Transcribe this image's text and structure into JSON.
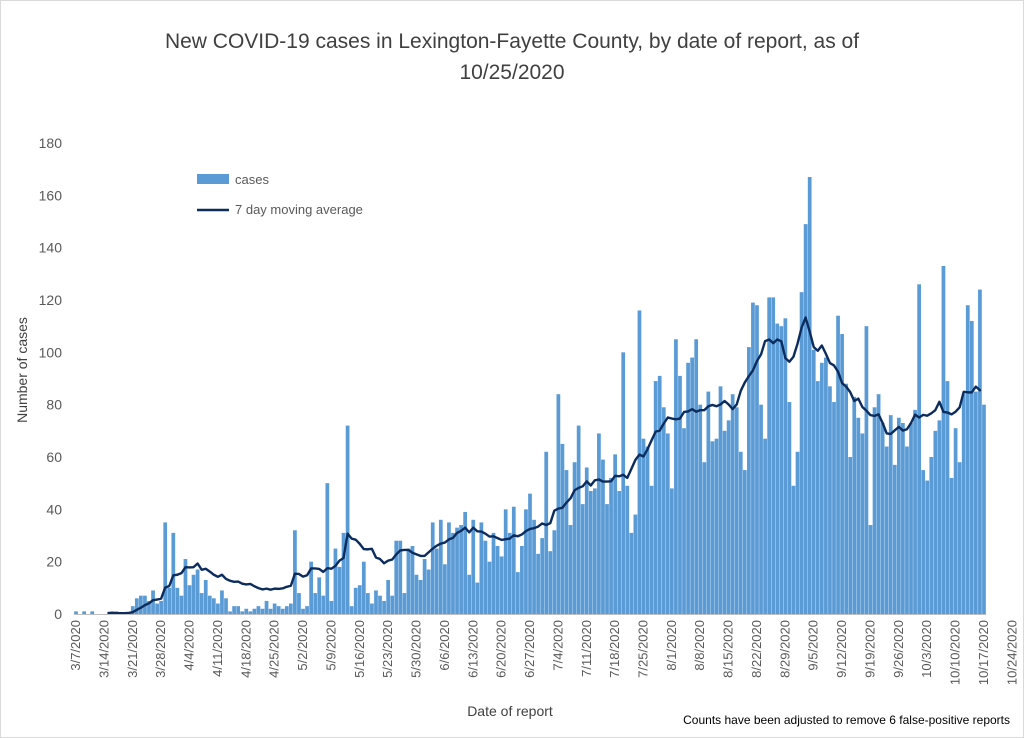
{
  "chart_data": {
    "type": "bar",
    "title": "New COVID-19 cases in Lexington-Fayette County, by date of report, as of 10/25/2020",
    "title_lines": [
      "New COVID-19 cases in Lexington-Fayette County, by date of report, as of",
      "10/25/2020"
    ],
    "xlabel": "Date of report",
    "ylabel": "Number of cases",
    "ylim": [
      0,
      180
    ],
    "yticks": [
      0,
      20,
      40,
      60,
      80,
      100,
      120,
      140,
      160,
      180
    ],
    "x_tick_labels": [
      "3/7/2020",
      "3/14/2020",
      "3/21/2020",
      "3/28/2020",
      "4/4/2020",
      "4/11/2020",
      "4/18/2020",
      "4/25/2020",
      "5/2/2020",
      "5/9/2020",
      "5/16/2020",
      "5/23/2020",
      "5/30/2020",
      "6/6/2020",
      "6/13/2020",
      "6/20/2020",
      "6/27/2020",
      "7/4/2020",
      "7/11/2020",
      "7/18/2020",
      "7/25/2020",
      "8/1/2020",
      "8/8/2020",
      "8/15/2020",
      "8/22/2020",
      "8/29/2020",
      "9/5/2020",
      "9/12/2020",
      "9/19/2020",
      "9/26/2020",
      "10/3/2020",
      "10/10/2020",
      "10/17/2020",
      "10/24/2020"
    ],
    "start_date": "3/7/2020",
    "legend_position": "top-left",
    "grid": false,
    "note": "Counts have been adjusted to remove 6 false-positive reports",
    "colors": {
      "bars": "#5b9bd5",
      "line": "#0d2c5e",
      "axis": "#bfbfbf"
    },
    "series": [
      {
        "name": "cases",
        "type": "bar",
        "values": [
          1,
          0,
          1,
          0,
          1,
          0,
          0,
          0,
          0,
          1,
          1,
          0,
          0,
          0,
          3,
          6,
          7,
          7,
          5,
          9,
          4,
          5,
          35,
          10,
          31,
          10,
          7,
          21,
          11,
          15,
          17,
          8,
          13,
          7,
          6,
          4,
          9,
          6,
          1,
          3,
          3,
          1,
          2,
          1,
          2,
          3,
          2,
          5,
          2,
          4,
          3,
          2,
          3,
          4,
          32,
          8,
          2,
          3,
          20,
          8,
          14,
          7,
          50,
          5,
          25,
          18,
          31,
          72,
          3,
          10,
          11,
          20,
          8,
          4,
          9,
          7,
          5,
          13,
          7,
          28,
          28,
          8,
          25,
          26,
          15,
          13,
          21,
          17,
          35,
          25,
          36,
          19,
          35,
          31,
          33,
          34,
          39,
          15,
          36,
          12,
          35,
          28,
          20,
          31,
          26,
          22,
          40,
          31,
          41,
          16,
          26,
          40,
          46,
          36,
          23,
          29,
          62,
          24,
          32,
          84,
          65,
          55,
          34,
          58,
          72,
          42,
          56,
          47,
          48,
          69,
          59,
          42,
          52,
          61,
          47,
          100,
          49,
          31,
          38,
          116,
          67,
          64,
          49,
          89,
          91,
          79,
          69,
          48,
          105,
          91,
          71,
          96,
          98,
          105,
          80,
          58,
          85,
          66,
          67,
          87,
          70,
          74,
          84,
          79,
          62,
          55,
          102,
          119,
          118,
          80,
          67,
          121,
          121,
          111,
          110,
          113,
          81,
          49,
          62,
          123,
          149,
          167,
          101,
          89,
          96,
          98,
          87,
          81,
          114,
          107,
          88,
          60,
          83,
          75,
          69,
          110,
          34,
          79,
          84,
          73,
          64,
          76,
          57,
          75,
          73,
          64,
          73,
          78,
          126,
          55,
          51,
          60,
          70,
          74,
          133,
          89,
          52,
          71,
          58,
          84,
          118,
          112,
          85,
          124,
          80
        ]
      },
      {
        "name": "7 day moving average",
        "type": "line",
        "values": [
          null,
          null,
          null,
          null,
          null,
          null,
          null,
          null,
          0.4,
          0.4,
          0.3,
          0.3,
          0.3,
          0.4,
          0.7,
          1.6,
          2.4,
          3.4,
          4.1,
          5.3,
          5.5,
          5.9,
          10.1,
          10.7,
          14.8,
          15.0,
          15.6,
          17.9,
          17.8,
          17.9,
          19.3,
          16.9,
          17.3,
          16.2,
          15.0,
          14.2,
          15.0,
          13.4,
          12.7,
          12.3,
          12.4,
          11.6,
          11.3,
          11.5,
          10.6,
          9.9,
          9.4,
          9.7,
          9.3,
          9.7,
          9.6,
          9.8,
          10.4,
          10.8,
          15.4,
          15.3,
          14.3,
          14.8,
          17.4,
          17.4,
          17.2,
          16.1,
          17.5,
          17.3,
          18.4,
          20.4,
          21.4,
          30.7,
          28.8,
          28.4,
          26.8,
          24.8,
          24.7,
          24.9,
          21.6,
          21.0,
          19.4,
          20.4,
          20.8,
          22.8,
          24.3,
          24.5,
          24.5,
          23.4,
          22.8,
          22.2,
          22.2,
          23.6,
          25.0,
          26.1,
          26.9,
          27.3,
          28.5,
          29.1,
          31.0,
          31.8,
          33.0,
          31.2,
          33.0,
          31.6,
          31.5,
          30.7,
          29.6,
          29.7,
          29.0,
          28.3,
          28.6,
          28.8,
          30.1,
          29.7,
          30.4,
          31.7,
          32.5,
          32.8,
          33.4,
          34.6,
          34.0,
          34.7,
          39.5,
          40.3,
          40.6,
          42.6,
          44.2,
          47.3,
          48.2,
          48.8,
          50.7,
          49.1,
          51.1,
          51.4,
          50.6,
          50.6,
          50.7,
          52.8,
          52.6,
          53.2,
          52.0,
          55.4,
          58.9,
          60.9,
          60.2,
          63.0,
          66.4,
          69.7,
          70.1,
          72.8,
          75.1,
          74.7,
          74.4,
          74.7,
          77.2,
          77.4,
          78.3,
          77.3,
          77.9,
          77.9,
          79.4,
          79.9,
          79.4,
          80.1,
          81.4,
          80.1,
          78.3,
          80.1,
          85.3,
          88.5,
          90.9,
          93.1,
          96.7,
          99.2,
          104.3,
          104.9,
          103.5,
          104.9,
          104.2,
          97.8,
          96.4,
          98.3,
          103.3,
          109.4,
          113.3,
          108.0,
          102.0,
          100.6,
          102.6,
          99.4,
          95.9,
          95.0,
          92.6,
          88.2,
          86.9,
          84.8,
          81.4,
          82.3,
          79.1,
          77.7,
          76.0,
          75.7,
          76.3,
          73.0,
          69.0,
          68.8,
          70.2,
          71.5,
          70.1,
          70.6,
          73.0,
          76.2,
          75.1,
          76.1,
          75.8,
          76.7,
          77.9,
          81.1,
          77.2,
          77.0,
          76.3,
          77.3,
          79.0,
          84.9,
          84.7,
          84.7,
          86.9,
          85.5
        ]
      }
    ]
  }
}
